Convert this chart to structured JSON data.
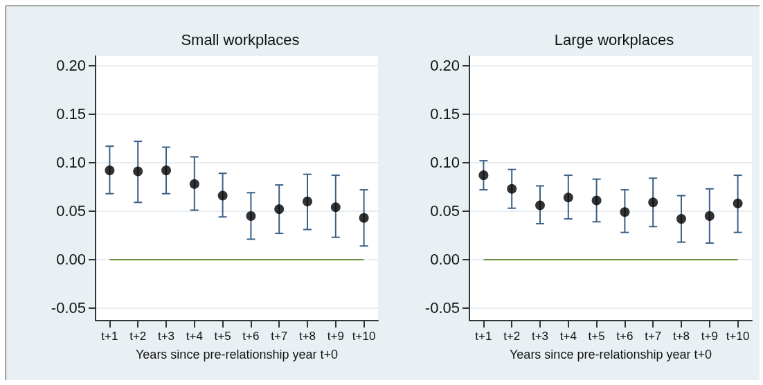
{
  "chart_data": [
    {
      "type": "scatter",
      "title": "Small workplaces",
      "xlabel": "Years since pre-relationship year t+0",
      "categories": [
        "t+1",
        "t+2",
        "t+3",
        "t+4",
        "t+5",
        "t+6",
        "t+7",
        "t+8",
        "t+9",
        "t+10"
      ],
      "series": [
        {
          "color": "#000000",
          "values": [
            0.092,
            0.091,
            0.092,
            0.078,
            0.066,
            0.045,
            0.052,
            0.06,
            0.054,
            0.043
          ],
          "errors": [
            [
              0.068,
              0.117
            ],
            [
              0.059,
              0.122
            ],
            [
              0.068,
              0.116
            ],
            [
              0.051,
              0.106
            ],
            [
              0.044,
              0.089
            ],
            [
              0.021,
              0.069
            ],
            [
              0.027,
              0.077
            ],
            [
              0.031,
              0.088
            ],
            [
              0.023,
              0.087
            ],
            [
              0.014,
              0.072
            ]
          ]
        }
      ],
      "ylim": [
        -0.063,
        0.21
      ],
      "yticks": [
        {
          "value": -0.05,
          "label": "-0.05"
        },
        {
          "value": 0,
          "label": "0.00"
        },
        {
          "value": 0.05,
          "label": "0.05"
        },
        {
          "value": 0.1,
          "label": "0.10"
        },
        {
          "value": 0.15,
          "label": "0.15"
        },
        {
          "value": 0.2,
          "label": "0.20"
        }
      ],
      "ref_lines": [
        {
          "axis": "y",
          "value": 0,
          "color": "#6b8e3a"
        }
      ],
      "grid": "y",
      "marker": "circle"
    },
    {
      "type": "scatter",
      "title": "Large workplaces",
      "xlabel": "Years since pre-relationship year t+0",
      "categories": [
        "t+1",
        "t+2",
        "t+3",
        "t+4",
        "t+5",
        "t+6",
        "t+7",
        "t+8",
        "t+9",
        "t+10"
      ],
      "series": [
        {
          "color": "#000000",
          "values": [
            0.087,
            0.073,
            0.056,
            0.064,
            0.061,
            0.049,
            0.059,
            0.042,
            0.045,
            0.058
          ],
          "errors": [
            [
              0.072,
              0.102
            ],
            [
              0.053,
              0.093
            ],
            [
              0.037,
              0.076
            ],
            [
              0.042,
              0.087
            ],
            [
              0.039,
              0.083
            ],
            [
              0.028,
              0.072
            ],
            [
              0.034,
              0.084
            ],
            [
              0.018,
              0.066
            ],
            [
              0.017,
              0.073
            ],
            [
              0.028,
              0.087
            ]
          ]
        }
      ],
      "ylim": [
        -0.063,
        0.21
      ],
      "yticks": [
        {
          "value": -0.05,
          "label": "-0.05"
        },
        {
          "value": 0,
          "label": "0.00"
        },
        {
          "value": 0.05,
          "label": "0.05"
        },
        {
          "value": 0.1,
          "label": "0.10"
        },
        {
          "value": 0.15,
          "label": "0.15"
        },
        {
          "value": 0.2,
          "label": "0.20"
        }
      ],
      "ref_lines": [
        {
          "axis": "y",
          "value": 0,
          "color": "#6b8e3a"
        }
      ],
      "grid": "y",
      "marker": "circle"
    }
  ]
}
